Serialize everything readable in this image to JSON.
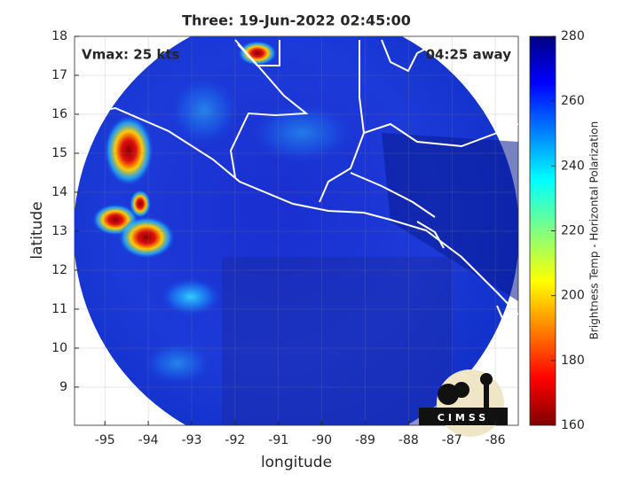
{
  "title": "Three: 19-Jun-2022 02:45:00",
  "annotations": {
    "vmax": "Vmax: 25 kts",
    "away": "04:25 away"
  },
  "x_axis": {
    "label": "longitude",
    "lim": [
      -95.7,
      -85.47
    ],
    "ticks": [
      -95,
      -94,
      -93,
      -92,
      -91,
      -90,
      -89,
      -88,
      -87,
      -86
    ]
  },
  "y_axis": {
    "label": "latitude",
    "lim": [
      8.02,
      18
    ],
    "ticks": [
      9,
      10,
      11,
      12,
      13,
      14,
      15,
      16,
      17,
      18
    ]
  },
  "colorbar": {
    "label": "Brightness Temp - Horizontal Polarization",
    "lim": [
      160,
      280
    ],
    "ticks": [
      160,
      180,
      200,
      220,
      240,
      260,
      280
    ]
  },
  "logo": "CIMSS"
}
